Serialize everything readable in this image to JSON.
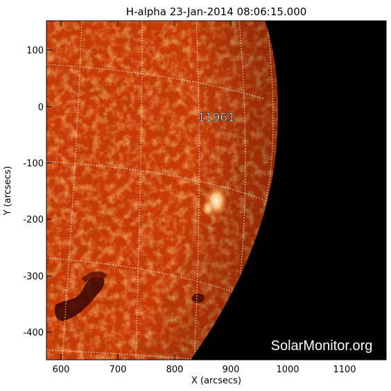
{
  "title": "H-alpha 23-Jan-2014 08:06:15.000",
  "xlabel": "X (arcsecs)",
  "ylabel": "Y (arcsecs)",
  "x_ticks": [
    "600",
    "700",
    "800",
    "900",
    "1000",
    "1100"
  ],
  "y_ticks": [
    "100",
    "0",
    "-100",
    "-200",
    "-300",
    "-400"
  ],
  "region_label": "11961",
  "watermark": "SolarMonitor.org",
  "colors": {
    "sun_base": "#c83a06",
    "sun_bright": "#f08030",
    "space": "#000000",
    "grid": "#ffffff"
  }
}
